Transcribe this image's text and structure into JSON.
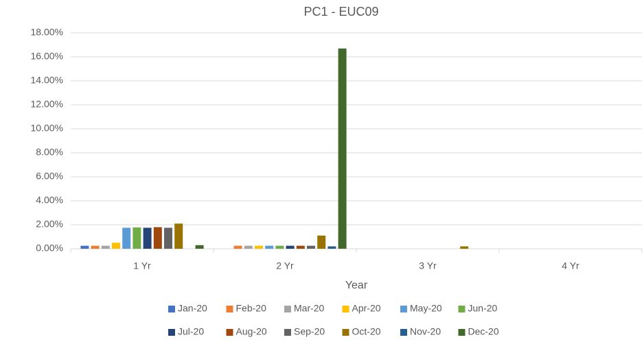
{
  "chart_data": {
    "type": "bar",
    "title": "PC1 - EUC09",
    "x_label": "Year",
    "categories": [
      "1 Yr",
      "2 Yr",
      "3 Yr",
      "4 Yr"
    ],
    "series": [
      {
        "name": "Jan-20",
        "color": "#4472c4",
        "values": [
          0.25,
          0,
          0,
          0
        ]
      },
      {
        "name": "Feb-20",
        "color": "#ed7d31",
        "values": [
          0.25,
          0.25,
          0,
          0
        ]
      },
      {
        "name": "Mar-20",
        "color": "#a5a5a5",
        "values": [
          0.25,
          0.25,
          0,
          0
        ]
      },
      {
        "name": "Apr-20",
        "color": "#ffc000",
        "values": [
          0.5,
          0.25,
          0,
          0
        ]
      },
      {
        "name": "May-20",
        "color": "#5b9bd5",
        "values": [
          1.75,
          0.25,
          0,
          0
        ]
      },
      {
        "name": "Jun-20",
        "color": "#70ad47",
        "values": [
          1.78,
          0.25,
          0,
          0
        ]
      },
      {
        "name": "Jul-20",
        "color": "#264478",
        "values": [
          1.75,
          0.25,
          0,
          0
        ]
      },
      {
        "name": "Aug-20",
        "color": "#9e480e",
        "values": [
          1.8,
          0.25,
          0,
          0
        ]
      },
      {
        "name": "Sep-20",
        "color": "#636363",
        "values": [
          1.75,
          0.25,
          0,
          0
        ]
      },
      {
        "name": "Oct-20",
        "color": "#997300",
        "values": [
          2.1,
          1.1,
          0.2,
          0
        ]
      },
      {
        "name": "Nov-20",
        "color": "#255e91",
        "values": [
          0,
          0.2,
          0,
          0
        ]
      },
      {
        "name": "Dec-20",
        "color": "#43682b",
        "values": [
          0.3,
          16.7,
          0,
          0
        ]
      }
    ],
    "ylim": [
      0,
      18
    ],
    "yticks": [
      {
        "value": 0,
        "label": "0.00%"
      },
      {
        "value": 2,
        "label": "2.00%"
      },
      {
        "value": 4,
        "label": "4.00%"
      },
      {
        "value": 6,
        "label": "6.00%"
      },
      {
        "value": 8,
        "label": "8.00%"
      },
      {
        "value": 10,
        "label": "10.00%"
      },
      {
        "value": 12,
        "label": "12.00%"
      },
      {
        "value": 14,
        "label": "14.00%"
      },
      {
        "value": 16,
        "label": "16.00%"
      },
      {
        "value": 18,
        "label": "18.00%"
      }
    ],
    "grid": true,
    "legend": "bottom"
  }
}
